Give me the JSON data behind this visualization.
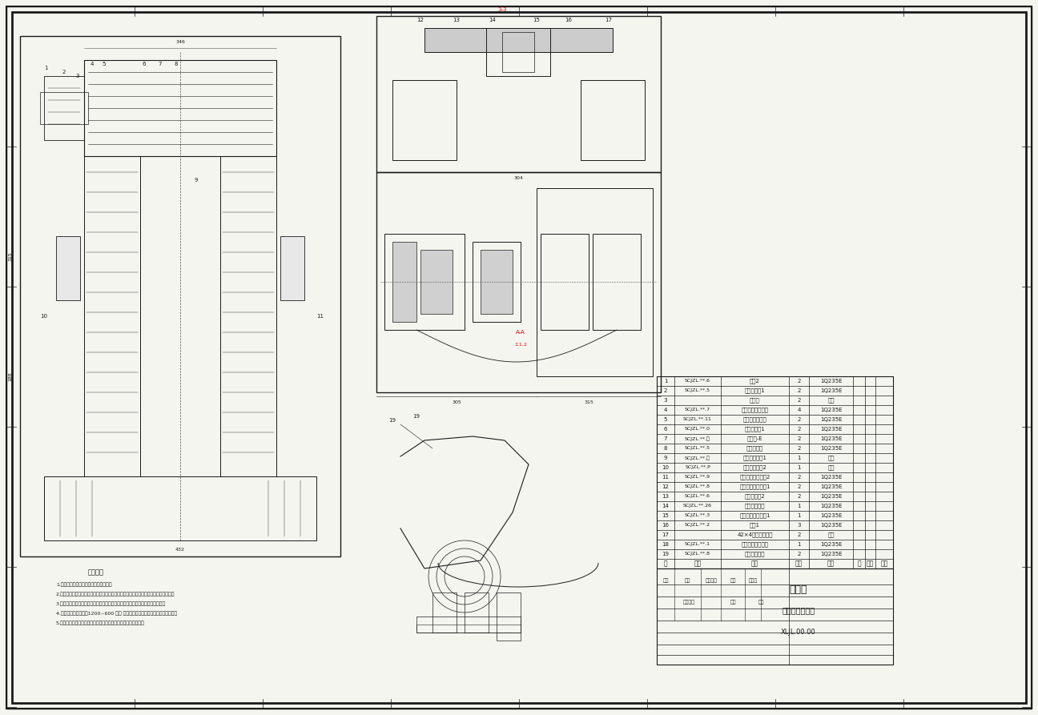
{
  "title": "膝关节助力装置",
  "subtitle": "总装图",
  "drawing_number": "XLJL.00.00",
  "background_color": "#f5f5f0",
  "border_color": "#000000",
  "line_color": "#1a1a1a",
  "table_header": [
    "序",
    "代号",
    "名称",
    "数量",
    "材料",
    "制",
    "审查",
    "备注"
  ],
  "bom_rows": [
    [
      "19",
      "SCJZL.**.8",
      "膝关节铰接板",
      "2",
      "1Q235E",
      "",
      "",
      ""
    ],
    [
      "18",
      "SCJZL.**.1",
      "膝关节护罩支支架",
      "1",
      "1Q235E",
      "",
      "",
      ""
    ],
    [
      "17",
      "",
      "42×4螺栓钉连接组",
      "2",
      "米制",
      "",
      "",
      ""
    ],
    [
      "16",
      "SCJZL.**.2",
      "垫片1",
      "3",
      "1Q235E",
      "",
      "",
      ""
    ],
    [
      "15",
      "SCJZL.**.3",
      "膝关节护罩支支元1",
      "1",
      "1Q235E",
      "",
      "",
      ""
    ],
    [
      "14",
      "SCJZL.**.26",
      "膝关节上总段",
      "1",
      "1Q235E",
      "",
      "",
      ""
    ],
    [
      "13",
      "SCJZL.**.6",
      "膝关节联架2",
      "2",
      "1Q235E",
      "",
      "",
      ""
    ],
    [
      "12",
      "SCJZL.**.8",
      "膝关节全套夹紧架1",
      "2",
      "1Q235E",
      "",
      "",
      ""
    ],
    [
      "11",
      "SCJZL.**.9",
      "膝关节全套夹紧架2",
      "2",
      "1Q235E",
      "",
      "",
      ""
    ],
    [
      "10",
      "SCJZL.**.P",
      "膝关节宇型轴2",
      "1",
      "钢材",
      "",
      "",
      ""
    ],
    [
      "9",
      "SCJZL.**.图",
      "膝关节宇型轴1",
      "1",
      "钢材",
      "",
      "",
      ""
    ],
    [
      "8",
      "SCJZL.**.5",
      "膝关节减轴",
      "2",
      "1Q235E",
      "",
      "",
      ""
    ],
    [
      "7",
      "SCJZL.**.带",
      "膝关节-E",
      "2",
      "1Q235E",
      "",
      "",
      ""
    ],
    [
      "6",
      "SCJZL.**.0",
      "膝关节节节1",
      "2",
      "1Q235E",
      "",
      "",
      ""
    ],
    [
      "5",
      "SCJZL.**.11",
      "膝关节铰接接板",
      "2",
      "1Q235E",
      "",
      "",
      ""
    ],
    [
      "4",
      "SCJZL.**.7",
      "膝关节全套夹紧支",
      "4",
      "1Q235E",
      "",
      "",
      ""
    ],
    [
      "3",
      "",
      "标准量",
      "2",
      "米制",
      "",
      "",
      ""
    ],
    [
      "2",
      "SCJZL.**.5",
      "膝关节联架1",
      "2",
      "1Q235E",
      "",
      "",
      ""
    ],
    [
      "1",
      "SCJZL.**.6",
      "支柱2",
      "2",
      "1Q235E",
      "",
      "",
      ""
    ]
  ],
  "tech_notes": [
    "技术要求",
    "1.零件必须进行清洗、浸泡、防锈处理。",
    "2.齿轮、轴承端盖等，门户及连接零部件之前要涂抹机油，拧紧螺钉后，接缝涂防锈漆。",
    "3.安装后应保持整洁，对转动部位，滑动部位，密封处与连接处进行定期检查润滑",
    "4.本产品在使用时每隔1200~600 工时 保持更换。定期更换，严格参照说明书。",
    "5.安装后对产品进行中间处理，确保产品在使用过程中高效运转。"
  ],
  "figsize": [
    12.96,
    8.93
  ],
  "dpi": 100
}
